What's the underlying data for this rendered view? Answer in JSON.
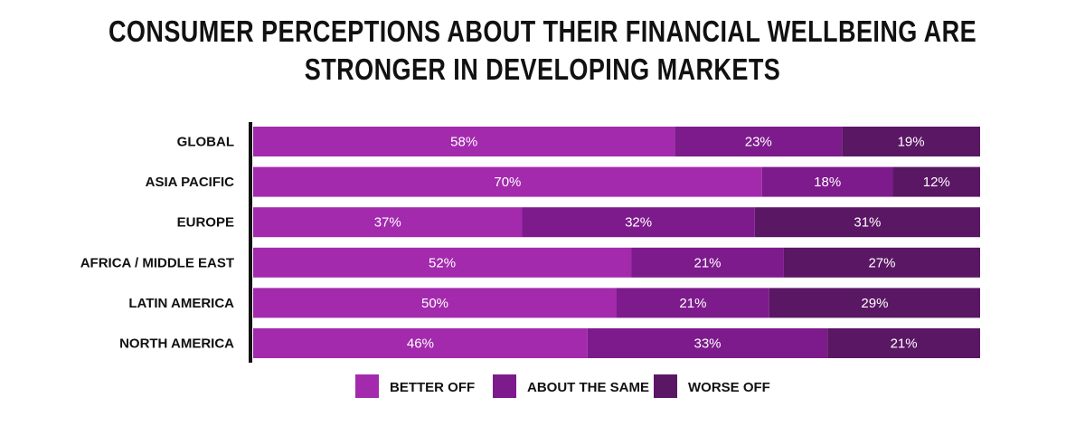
{
  "title": "CONSUMER PERCEPTIONS ABOUT THEIR FINANCIAL WELLBEING ARE STRONGER IN DEVELOPING MARKETS",
  "chart_data": {
    "type": "bar",
    "orientation": "horizontal",
    "stacked": true,
    "normalized_percent": true,
    "title": "CONSUMER PERCEPTIONS ABOUT THEIR FINANCIAL WELLBEING ARE STRONGER IN DEVELOPING MARKETS",
    "categories": [
      "GLOBAL",
      "ASIA PACIFIC",
      "EUROPE",
      "AFRICA / MIDDLE EAST",
      "LATIN AMERICA",
      "NORTH AMERICA"
    ],
    "series": [
      {
        "name": "BETTER OFF",
        "color": "#a32aad",
        "values": [
          58,
          70,
          37,
          52,
          50,
          46
        ]
      },
      {
        "name": "ABOUT THE SAME",
        "color": "#7d1b8c",
        "values": [
          23,
          18,
          32,
          21,
          21,
          33
        ]
      },
      {
        "name": "WORSE OFF",
        "color": "#5a1764",
        "values": [
          19,
          12,
          31,
          27,
          29,
          21
        ]
      }
    ],
    "value_suffix": "%",
    "xlim": [
      0,
      100
    ],
    "legend": "bottom-center",
    "grid": false
  }
}
